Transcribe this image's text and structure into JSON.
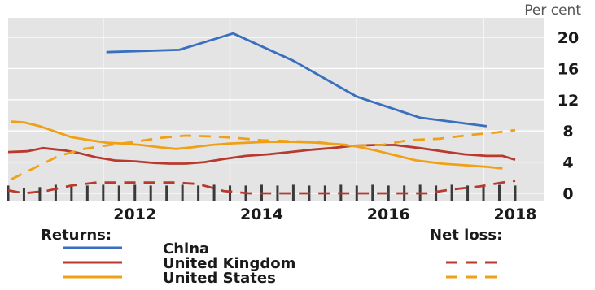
{
  "chart_data": {
    "type": "line",
    "unit": "Per cent",
    "x_ticks": [
      "2012",
      "2014",
      "2016",
      "2018"
    ],
    "y_ticks": [
      "0",
      "4",
      "8",
      "12",
      "16",
      "20"
    ],
    "xlim": [
      2010.0,
      2018.45
    ],
    "ylim": [
      0,
      21.5
    ],
    "grid": true,
    "legend": {
      "placement": "bottom",
      "group1_title": "Returns:",
      "group2_title": "Net loss:"
    },
    "series": [
      {
        "name": "China",
        "group": "returns",
        "color": "#3a6fbf",
        "dash": false,
        "points": [
          [
            2011.55,
            18.1
          ],
          [
            2012.7,
            18.4
          ],
          [
            2013.55,
            20.5
          ],
          [
            2014.5,
            17.0
          ],
          [
            2015.5,
            12.4
          ],
          [
            2016.5,
            9.7
          ],
          [
            2017.55,
            8.6
          ]
        ]
      },
      {
        "name": "United Kingdom",
        "group": "returns",
        "color": "#b83a2e",
        "dash": false,
        "points": [
          [
            2010.0,
            5.3
          ],
          [
            2010.3,
            5.4
          ],
          [
            2010.55,
            5.8
          ],
          [
            2010.9,
            5.5
          ],
          [
            2011.1,
            5.2
          ],
          [
            2011.4,
            4.6
          ],
          [
            2011.7,
            4.2
          ],
          [
            2012.0,
            4.1
          ],
          [
            2012.3,
            3.9
          ],
          [
            2012.55,
            3.8
          ],
          [
            2012.8,
            3.8
          ],
          [
            2013.1,
            4.0
          ],
          [
            2013.4,
            4.4
          ],
          [
            2013.75,
            4.8
          ],
          [
            2014.1,
            5.0
          ],
          [
            2014.45,
            5.3
          ],
          [
            2014.8,
            5.6
          ],
          [
            2015.1,
            5.8
          ],
          [
            2015.45,
            6.1
          ],
          [
            2015.8,
            6.2
          ],
          [
            2016.1,
            6.2
          ],
          [
            2016.5,
            5.8
          ],
          [
            2016.85,
            5.4
          ],
          [
            2017.2,
            5.0
          ],
          [
            2017.55,
            4.8
          ],
          [
            2017.8,
            4.8
          ],
          [
            2018.0,
            4.3
          ]
        ]
      },
      {
        "name": "United States",
        "group": "returns",
        "color": "#f0a014",
        "dash": false,
        "points": [
          [
            2010.05,
            9.2
          ],
          [
            2010.25,
            9.1
          ],
          [
            2010.5,
            8.6
          ],
          [
            2010.75,
            7.9
          ],
          [
            2011.0,
            7.2
          ],
          [
            2011.3,
            6.8
          ],
          [
            2011.55,
            6.5
          ],
          [
            2011.8,
            6.4
          ],
          [
            2012.1,
            6.2
          ],
          [
            2012.4,
            5.9
          ],
          [
            2012.65,
            5.7
          ],
          [
            2012.9,
            5.9
          ],
          [
            2013.2,
            6.2
          ],
          [
            2013.5,
            6.4
          ],
          [
            2013.8,
            6.5
          ],
          [
            2014.1,
            6.6
          ],
          [
            2014.5,
            6.6
          ],
          [
            2014.85,
            6.5
          ],
          [
            2015.2,
            6.3
          ],
          [
            2015.5,
            6.0
          ],
          [
            2015.8,
            5.5
          ],
          [
            2016.1,
            4.9
          ],
          [
            2016.45,
            4.2
          ],
          [
            2016.85,
            3.8
          ],
          [
            2017.2,
            3.6
          ],
          [
            2017.55,
            3.4
          ],
          [
            2017.8,
            3.2
          ]
        ]
      },
      {
        "name": "",
        "group": "net_loss",
        "color": "#b83a2e",
        "dash": true,
        "points": [
          [
            2010.0,
            0.4
          ],
          [
            2010.25,
            0.0
          ],
          [
            2010.6,
            0.3
          ],
          [
            2011.0,
            1.0
          ],
          [
            2011.4,
            1.4
          ],
          [
            2011.8,
            1.4
          ],
          [
            2012.2,
            1.4
          ],
          [
            2012.6,
            1.4
          ],
          [
            2013.0,
            1.2
          ],
          [
            2013.4,
            0.3
          ],
          [
            2013.8,
            0.0
          ],
          [
            2014.2,
            0.0
          ],
          [
            2014.6,
            0.0
          ],
          [
            2015.0,
            0.0
          ],
          [
            2015.4,
            0.0
          ],
          [
            2015.8,
            0.0
          ],
          [
            2016.2,
            0.0
          ],
          [
            2016.6,
            0.0
          ],
          [
            2017.0,
            0.5
          ],
          [
            2017.45,
            0.9
          ],
          [
            2017.8,
            1.4
          ],
          [
            2018.0,
            1.6
          ]
        ]
      },
      {
        "name": "",
        "group": "net_loss",
        "color": "#f0a014",
        "dash": true,
        "points": [
          [
            2010.05,
            1.8
          ],
          [
            2010.4,
            3.2
          ],
          [
            2010.8,
            4.8
          ],
          [
            2011.2,
            5.7
          ],
          [
            2011.6,
            6.2
          ],
          [
            2012.0,
            6.6
          ],
          [
            2012.4,
            7.1
          ],
          [
            2012.8,
            7.4
          ],
          [
            2013.2,
            7.3
          ],
          [
            2013.6,
            7.1
          ],
          [
            2014.0,
            6.8
          ],
          [
            2014.4,
            6.7
          ],
          [
            2014.8,
            6.6
          ],
          [
            2015.2,
            6.3
          ],
          [
            2015.5,
            6.1
          ],
          [
            2015.9,
            6.2
          ],
          [
            2016.3,
            6.8
          ],
          [
            2016.8,
            7.0
          ],
          [
            2017.3,
            7.5
          ],
          [
            2017.7,
            7.8
          ],
          [
            2018.0,
            8.1
          ]
        ]
      }
    ],
    "net_loss_bars": [
      {
        "x": 2010.0,
        "v": 1.0
      },
      {
        "x": 2010.25,
        "v": 0.7
      },
      {
        "x": 2010.5,
        "v": 0.8
      },
      {
        "x": 2010.75,
        "v": 1.1
      },
      {
        "x": 2011.0,
        "v": 1.0
      },
      {
        "x": 2011.25,
        "v": 1.0
      },
      {
        "x": 2011.5,
        "v": 1.1
      },
      {
        "x": 2011.75,
        "v": 1.0
      },
      {
        "x": 2012.0,
        "v": 1.1
      },
      {
        "x": 2012.25,
        "v": 1.0
      },
      {
        "x": 2012.5,
        "v": 1.0
      },
      {
        "x": 2012.75,
        "v": 1.1
      },
      {
        "x": 2013.0,
        "v": 1.0
      },
      {
        "x": 2013.25,
        "v": 1.1
      },
      {
        "x": 2013.5,
        "v": 1.0
      },
      {
        "x": 2013.75,
        "v": 1.0
      },
      {
        "x": 2014.0,
        "v": 1.1
      },
      {
        "x": 2014.25,
        "v": 1.0
      },
      {
        "x": 2014.5,
        "v": 1.1
      },
      {
        "x": 2014.75,
        "v": 1.0
      },
      {
        "x": 2015.0,
        "v": 1.0
      },
      {
        "x": 2015.25,
        "v": 1.1
      },
      {
        "x": 2015.5,
        "v": 1.0
      },
      {
        "x": 2015.75,
        "v": 1.1
      },
      {
        "x": 2016.0,
        "v": 1.0
      },
      {
        "x": 2016.25,
        "v": 1.0
      },
      {
        "x": 2016.5,
        "v": 1.1
      },
      {
        "x": 2016.75,
        "v": 1.0
      },
      {
        "x": 2017.0,
        "v": 1.1
      },
      {
        "x": 2017.25,
        "v": 1.0
      },
      {
        "x": 2017.5,
        "v": 1.0
      },
      {
        "x": 2017.75,
        "v": 1.1
      },
      {
        "x": 2018.0,
        "v": 1.0
      }
    ]
  }
}
